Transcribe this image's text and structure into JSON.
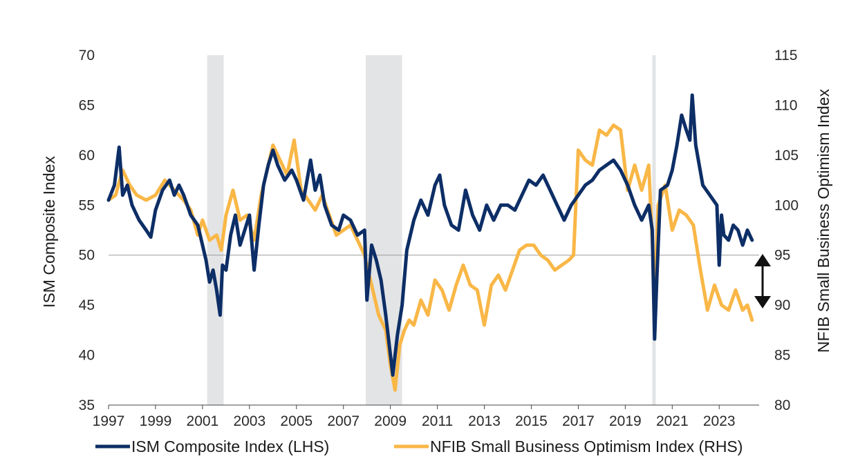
{
  "chart_data": {
    "type": "line",
    "title": "",
    "xlabel": "",
    "ylabel_left": "ISM Composite Index",
    "ylabel_right": "NFIB Small Business Optimism Index",
    "x_range": [
      1997,
      2024.7
    ],
    "ylim_left": [
      35,
      70
    ],
    "ylim_right": [
      80,
      115
    ],
    "left_ticks": [
      "35",
      "40",
      "45",
      "50",
      "55",
      "60",
      "65",
      "70"
    ],
    "right_ticks": [
      "80",
      "85",
      "90",
      "95",
      "100",
      "105",
      "110",
      "115"
    ],
    "x_ticks": [
      "1997",
      "1999",
      "2001",
      "2003",
      "2005",
      "2007",
      "2009",
      "2011",
      "2013",
      "2015",
      "2017",
      "2019",
      "2021",
      "2023"
    ],
    "reference_line_left": 50,
    "recessions": [
      {
        "start": 2001.2,
        "end": 2001.9
      },
      {
        "start": 2007.95,
        "end": 2009.5
      },
      {
        "start": 2020.15,
        "end": 2020.3
      }
    ],
    "annotation": "double-headed arrow indicating the gap between the two series",
    "colors": {
      "ism": "#0d2e66",
      "nfib": "#f9b747",
      "recession": "#e3e4e6",
      "ref_line": "#9a9a9a",
      "arrow": "#111111"
    },
    "legend_position": "bottom",
    "series": [
      {
        "name": "ISM Composite Index (LHS)",
        "axis": "left",
        "x": [
          1997.0,
          1997.25,
          1997.45,
          1997.6,
          1997.8,
          1998.0,
          1998.3,
          1998.6,
          1998.8,
          1999.0,
          1999.3,
          1999.6,
          1999.8,
          2000.0,
          2000.2,
          2000.5,
          2000.8,
          2001.0,
          2001.15,
          2001.3,
          2001.45,
          2001.6,
          2001.75,
          2001.85,
          2002.0,
          2002.2,
          2002.4,
          2002.6,
          2002.8,
          2003.0,
          2003.2,
          2003.4,
          2003.6,
          2003.8,
          2004.0,
          2004.2,
          2004.5,
          2004.8,
          2005.0,
          2005.3,
          2005.6,
          2005.8,
          2006.0,
          2006.2,
          2006.5,
          2006.8,
          2007.0,
          2007.3,
          2007.6,
          2007.9,
          2008.0,
          2008.2,
          2008.4,
          2008.6,
          2008.8,
          2009.0,
          2009.1,
          2009.3,
          2009.5,
          2009.7,
          2010.0,
          2010.3,
          2010.6,
          2010.9,
          2011.1,
          2011.3,
          2011.6,
          2011.9,
          2012.2,
          2012.5,
          2012.8,
          2013.1,
          2013.4,
          2013.7,
          2014.0,
          2014.3,
          2014.6,
          2014.9,
          2015.2,
          2015.5,
          2015.8,
          2016.1,
          2016.4,
          2016.7,
          2017.0,
          2017.3,
          2017.6,
          2017.9,
          2018.2,
          2018.5,
          2018.8,
          2019.1,
          2019.4,
          2019.7,
          2020.0,
          2020.15,
          2020.25,
          2020.35,
          2020.5,
          2020.8,
          2021.0,
          2021.2,
          2021.4,
          2021.6,
          2021.75,
          2021.85,
          2022.0,
          2022.3,
          2022.6,
          2022.9,
          2023.0,
          2023.1,
          2023.2,
          2023.4,
          2023.6,
          2023.8,
          2024.0,
          2024.2,
          2024.4
        ],
        "values": [
          55.5,
          57.0,
          60.8,
          56.0,
          57.0,
          55.0,
          53.5,
          52.5,
          51.8,
          54.5,
          56.5,
          57.5,
          56.0,
          57.0,
          56.0,
          54.0,
          53.0,
          51.0,
          49.5,
          47.3,
          48.5,
          46.5,
          44.0,
          49.0,
          48.5,
          52.0,
          54.0,
          51.0,
          52.5,
          54.0,
          48.5,
          53.0,
          57.0,
          59.0,
          60.5,
          59.0,
          57.5,
          58.5,
          57.5,
          55.5,
          59.5,
          56.5,
          58.0,
          55.0,
          53.0,
          52.5,
          54.0,
          53.5,
          52.0,
          52.5,
          45.5,
          51.0,
          49.5,
          47.5,
          44.0,
          40.0,
          38.0,
          42.0,
          45.0,
          50.5,
          53.5,
          55.5,
          54.0,
          57.0,
          58.0,
          55.0,
          53.0,
          52.5,
          56.5,
          54.0,
          52.5,
          55.0,
          53.5,
          55.0,
          55.0,
          54.5,
          56.0,
          57.5,
          57.0,
          58.0,
          56.5,
          55.0,
          53.5,
          55.0,
          56.0,
          57.0,
          57.5,
          58.5,
          59.0,
          59.5,
          58.5,
          57.0,
          55.0,
          53.5,
          55.0,
          52.5,
          41.6,
          48.0,
          56.5,
          57.0,
          58.5,
          61.0,
          64.0,
          62.5,
          61.5,
          66.0,
          61.0,
          57.0,
          56.0,
          55.0,
          49.0,
          54.0,
          52.0,
          51.5,
          53.0,
          52.5,
          51.0,
          52.5,
          51.5
        ]
      },
      {
        "name": "NFIB Small Business Optimism Index (RHS)",
        "axis": "right",
        "x": [
          1997.0,
          1997.3,
          1997.6,
          1997.9,
          1998.2,
          1998.6,
          1999.0,
          1999.4,
          1999.8,
          2000.2,
          2000.5,
          2000.8,
          2001.0,
          2001.3,
          2001.6,
          2001.8,
          2002.0,
          2002.3,
          2002.6,
          2002.9,
          2003.2,
          2003.5,
          2003.8,
          2004.0,
          2004.3,
          2004.6,
          2004.9,
          2005.2,
          2005.5,
          2005.8,
          2006.1,
          2006.4,
          2006.7,
          2007.0,
          2007.3,
          2007.6,
          2007.9,
          2008.2,
          2008.5,
          2008.8,
          2009.0,
          2009.2,
          2009.4,
          2009.6,
          2009.8,
          2010.0,
          2010.3,
          2010.6,
          2010.9,
          2011.2,
          2011.5,
          2011.8,
          2012.1,
          2012.4,
          2012.7,
          2013.0,
          2013.3,
          2013.6,
          2013.9,
          2014.2,
          2014.5,
          2014.8,
          2015.1,
          2015.4,
          2015.7,
          2016.0,
          2016.3,
          2016.6,
          2016.8,
          2017.0,
          2017.3,
          2017.6,
          2017.9,
          2018.2,
          2018.5,
          2018.8,
          2019.1,
          2019.4,
          2019.7,
          2020.0,
          2020.15,
          2020.25,
          2020.4,
          2020.7,
          2021.0,
          2021.3,
          2021.6,
          2021.9,
          2022.2,
          2022.5,
          2022.8,
          2023.1,
          2023.4,
          2023.7,
          2024.0,
          2024.2,
          2024.4
        ],
        "values": [
          100.5,
          101.0,
          103.5,
          102.0,
          101.0,
          100.5,
          101.0,
          102.5,
          101.5,
          100.5,
          99.5,
          97.0,
          98.5,
          96.5,
          97.0,
          95.5,
          99.0,
          101.5,
          98.5,
          99.0,
          96.5,
          101.0,
          104.0,
          106.0,
          104.5,
          103.0,
          106.5,
          101.5,
          100.5,
          99.5,
          101.0,
          99.0,
          97.0,
          97.5,
          98.0,
          96.5,
          95.0,
          92.0,
          89.0,
          87.5,
          84.0,
          81.5,
          86.0,
          87.5,
          88.5,
          88.0,
          90.5,
          89.0,
          92.5,
          91.5,
          89.5,
          92.0,
          94.0,
          92.0,
          91.5,
          88.0,
          92.0,
          93.0,
          91.5,
          93.5,
          95.5,
          96.0,
          96.0,
          95.0,
          94.5,
          93.5,
          94.0,
          94.5,
          95.0,
          105.5,
          104.5,
          104.0,
          107.5,
          107.0,
          108.0,
          107.5,
          101.5,
          104.0,
          101.5,
          104.0,
          96.5,
          90.5,
          100.0,
          102.0,
          97.5,
          99.5,
          99.0,
          98.0,
          93.5,
          89.5,
          92.0,
          90.0,
          89.5,
          91.5,
          89.5,
          90.0,
          88.5
        ]
      }
    ]
  }
}
